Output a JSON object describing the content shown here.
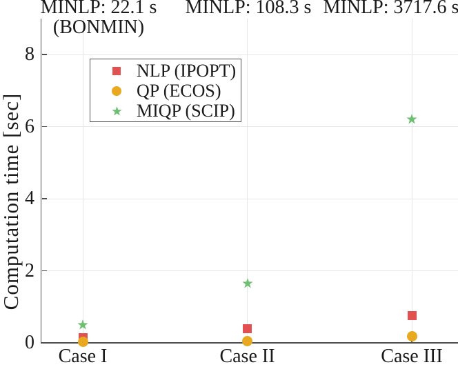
{
  "colors": {
    "nlp_red": "#e0514f",
    "qp_orange": "#e8a820",
    "miqp_green": "#6fbf72",
    "grid": "#e6e6e6",
    "axis": "#4d4d4d",
    "text": "#1a1a1a"
  },
  "chart_data": {
    "type": "scatter",
    "title": "",
    "categories": [
      "Case I",
      "Case II",
      "Case III"
    ],
    "series": [
      {
        "name": "NLP (IPOPT)",
        "marker": "square",
        "color": "#e0514f",
        "values": [
          0.15,
          0.4,
          0.75
        ]
      },
      {
        "name": "QP (ECOS)",
        "marker": "circle",
        "color": "#e8a820",
        "values": [
          0.02,
          0.05,
          0.18
        ]
      },
      {
        "name": "MIQP (SCIP)",
        "marker": "star",
        "color": "#6fbf72",
        "values": [
          0.5,
          1.65,
          6.2
        ]
      }
    ],
    "minlp_annotations": [
      {
        "lines": [
          "MINLP: 22.1 s",
          "(BONMIN)"
        ],
        "seconds": 22.1
      },
      {
        "lines": [
          "MINLP: 108.3 s"
        ],
        "seconds": 108.3
      },
      {
        "lines": [
          "MINLP: 3717.6 s"
        ],
        "seconds": 3717.6
      }
    ],
    "xlabel": "",
    "ylabel": "Computation time [sec]",
    "yticks": [
      0,
      2,
      4,
      6,
      8
    ],
    "ylim": [
      0,
      9
    ],
    "grid": true,
    "legend": {
      "position": "upper-left-inside",
      "entries": [
        "NLP (IPOPT)",
        "QP (ECOS)",
        "MIQP (SCIP)"
      ]
    }
  }
}
